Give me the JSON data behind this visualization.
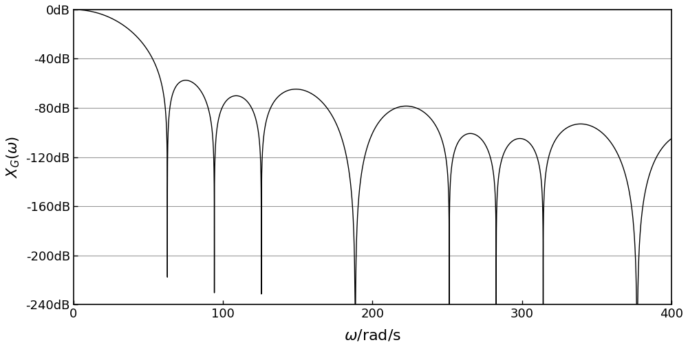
{
  "xlim": [
    0,
    400
  ],
  "ylim": [
    -240,
    0
  ],
  "yticks": [
    0,
    -40,
    -80,
    -120,
    -160,
    -200,
    -240
  ],
  "ytick_labels": [
    "0dB",
    "-40dB",
    "-80dB",
    "-120dB",
    "-160dB",
    "-200dB",
    "-240dB"
  ],
  "xticks": [
    0,
    100,
    200,
    300,
    400
  ],
  "line_color": "#000000",
  "background_color": "#ffffff",
  "grid_color": "#999999",
  "NT1": 0.1,
  "NT2": 0.033333,
  "power": 3
}
